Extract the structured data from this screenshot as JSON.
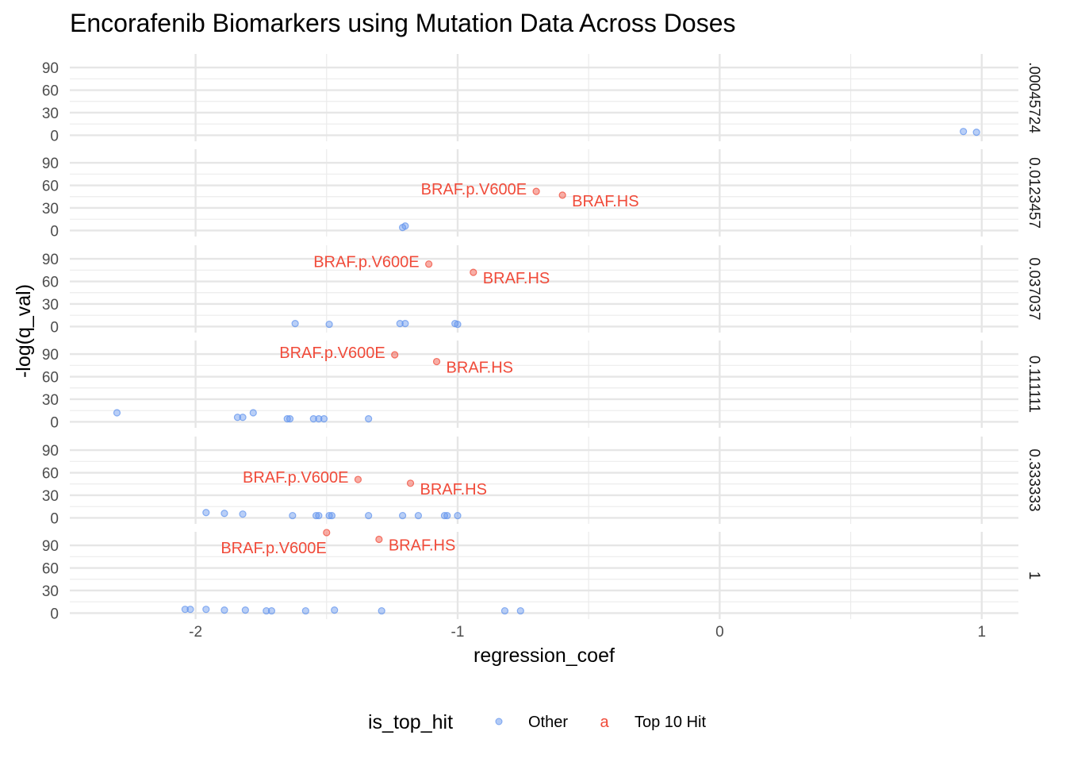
{
  "chart_data": {
    "type": "scatter",
    "title": "Encorafenib Biomarkers using Mutation Data Across Doses",
    "xlabel": "regression_coef",
    "ylabel": "-log(q_val)",
    "xlim": [
      -2.48,
      1.14
    ],
    "ylim": [
      -8,
      108
    ],
    "x_ticks": [
      -2,
      -1,
      0,
      1
    ],
    "x_tick_labels": [
      "-2",
      "-1",
      "0",
      "1"
    ],
    "y_ticks": [
      0,
      30,
      60,
      90
    ],
    "y_tick_labels": [
      "0",
      "30",
      "60",
      "90"
    ],
    "grid": true,
    "legend": {
      "title": "is_top_hit",
      "position": "bottom",
      "entries": [
        {
          "label": "Other",
          "color": "#6495ED",
          "glyph": "point"
        },
        {
          "label": "Top 10 Hit",
          "color": "#F04B3A",
          "glyph": "a"
        }
      ]
    },
    "colors": {
      "Other": "#6495ED",
      "Top 10 Hit": "#F04B3A"
    },
    "panels": [
      {
        "strip": ".00045724",
        "points": [
          {
            "x": 0.93,
            "y": 5,
            "group": "Other"
          },
          {
            "x": 0.98,
            "y": 4,
            "group": "Other"
          }
        ]
      },
      {
        "strip": "0.0123457",
        "points": [
          {
            "x": -1.21,
            "y": 4,
            "group": "Other"
          },
          {
            "x": -1.2,
            "y": 6,
            "group": "Other"
          },
          {
            "x": -0.7,
            "y": 52,
            "group": "Top 10 Hit",
            "label": "BRAF.p.V600E",
            "label_side": "left"
          },
          {
            "x": -0.6,
            "y": 47,
            "group": "Top 10 Hit",
            "label": "BRAF.HS",
            "label_side": "right"
          }
        ]
      },
      {
        "strip": "0.037037",
        "points": [
          {
            "x": -1.62,
            "y": 4,
            "group": "Other"
          },
          {
            "x": -1.49,
            "y": 3,
            "group": "Other"
          },
          {
            "x": -1.22,
            "y": 4,
            "group": "Other"
          },
          {
            "x": -1.2,
            "y": 4,
            "group": "Other"
          },
          {
            "x": -1.01,
            "y": 4,
            "group": "Other"
          },
          {
            "x": -1.0,
            "y": 3,
            "group": "Other"
          },
          {
            "x": -1.11,
            "y": 83,
            "group": "Top 10 Hit",
            "label": "BRAF.p.V600E",
            "label_side": "left"
          },
          {
            "x": -0.94,
            "y": 72,
            "group": "Top 10 Hit",
            "label": "BRAF.HS",
            "label_side": "right"
          }
        ]
      },
      {
        "strip": "0.111111",
        "points": [
          {
            "x": -2.3,
            "y": 12,
            "group": "Other"
          },
          {
            "x": -1.84,
            "y": 6,
            "group": "Other"
          },
          {
            "x": -1.82,
            "y": 6,
            "group": "Other"
          },
          {
            "x": -1.78,
            "y": 12,
            "group": "Other"
          },
          {
            "x": -1.65,
            "y": 4,
            "group": "Other"
          },
          {
            "x": -1.64,
            "y": 4,
            "group": "Other"
          },
          {
            "x": -1.55,
            "y": 4,
            "group": "Other"
          },
          {
            "x": -1.53,
            "y": 4,
            "group": "Other"
          },
          {
            "x": -1.51,
            "y": 4,
            "group": "Other"
          },
          {
            "x": -1.34,
            "y": 4,
            "group": "Other"
          },
          {
            "x": -1.24,
            "y": 89,
            "group": "Top 10 Hit",
            "label": "BRAF.p.V600E",
            "label_side": "left"
          },
          {
            "x": -1.08,
            "y": 80,
            "group": "Top 10 Hit",
            "label": "BRAF.HS",
            "label_side": "right"
          }
        ]
      },
      {
        "strip": "0.333333",
        "points": [
          {
            "x": -1.96,
            "y": 7,
            "group": "Other"
          },
          {
            "x": -1.89,
            "y": 6,
            "group": "Other"
          },
          {
            "x": -1.82,
            "y": 5,
            "group": "Other"
          },
          {
            "x": -1.63,
            "y": 3,
            "group": "Other"
          },
          {
            "x": -1.54,
            "y": 3,
            "group": "Other"
          },
          {
            "x": -1.53,
            "y": 3,
            "group": "Other"
          },
          {
            "x": -1.49,
            "y": 3,
            "group": "Other"
          },
          {
            "x": -1.48,
            "y": 3,
            "group": "Other"
          },
          {
            "x": -1.34,
            "y": 3,
            "group": "Other"
          },
          {
            "x": -1.21,
            "y": 3,
            "group": "Other"
          },
          {
            "x": -1.15,
            "y": 3,
            "group": "Other"
          },
          {
            "x": -1.05,
            "y": 3,
            "group": "Other"
          },
          {
            "x": -1.04,
            "y": 3,
            "group": "Other"
          },
          {
            "x": -1.0,
            "y": 3,
            "group": "Other"
          },
          {
            "x": -1.38,
            "y": 51,
            "group": "Top 10 Hit",
            "label": "BRAF.p.V600E",
            "label_side": "left"
          },
          {
            "x": -1.18,
            "y": 46,
            "group": "Top 10 Hit",
            "label": "BRAF.HS",
            "label_side": "right"
          }
        ]
      },
      {
        "strip": "1",
        "points": [
          {
            "x": -2.04,
            "y": 5,
            "group": "Other"
          },
          {
            "x": -2.02,
            "y": 5,
            "group": "Other"
          },
          {
            "x": -1.96,
            "y": 5,
            "group": "Other"
          },
          {
            "x": -1.89,
            "y": 4,
            "group": "Other"
          },
          {
            "x": -1.81,
            "y": 4,
            "group": "Other"
          },
          {
            "x": -1.73,
            "y": 3,
            "group": "Other"
          },
          {
            "x": -1.71,
            "y": 3,
            "group": "Other"
          },
          {
            "x": -1.58,
            "y": 3,
            "group": "Other"
          },
          {
            "x": -1.47,
            "y": 4,
            "group": "Other"
          },
          {
            "x": -1.29,
            "y": 3,
            "group": "Other"
          },
          {
            "x": -0.82,
            "y": 3,
            "group": "Other"
          },
          {
            "x": -0.76,
            "y": 3,
            "group": "Other"
          },
          {
            "x": -1.5,
            "y": 107,
            "group": "Top 10 Hit",
            "label": "BRAF.p.V600E",
            "label_side": "below-left"
          },
          {
            "x": -1.3,
            "y": 98,
            "group": "Top 10 Hit",
            "label": "BRAF.HS",
            "label_side": "right"
          }
        ]
      }
    ]
  }
}
